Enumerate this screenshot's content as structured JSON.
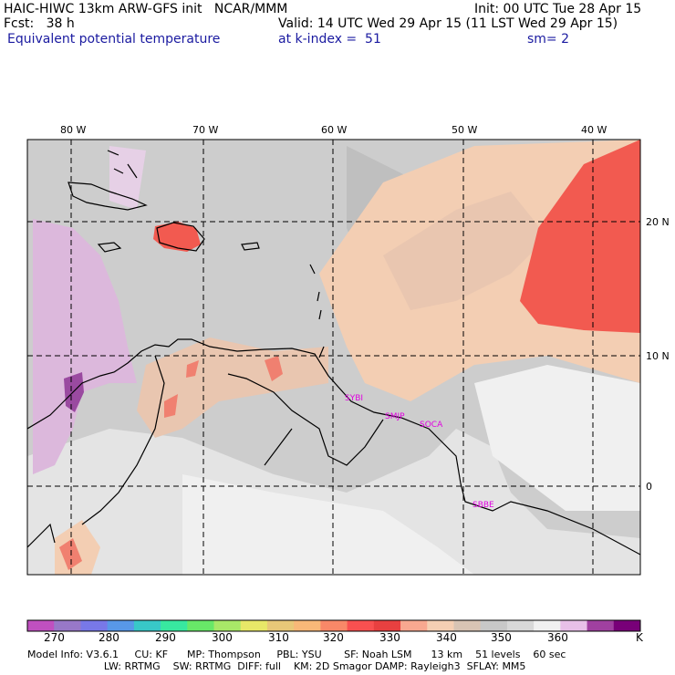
{
  "header": {
    "title": "HAIC-HIWC 13km ARW-GFS init   NCAR/MMM",
    "init": "Init: 00 UTC Tue 28 Apr 15",
    "fcst": "Fcst:   38 h",
    "valid": "Valid: 14 UTC Wed 29 Apr 15 (11 LST Wed 29 Apr 15)",
    "field": "Equivalent potential temperature",
    "level": "at k-index =  51",
    "smooth": "sm= 2"
  },
  "map": {
    "lon_labels": [
      "80 W",
      "70 W",
      "60 W",
      "50 W",
      "40 W"
    ],
    "lat_labels": [
      "20 N",
      "10 N",
      "0"
    ],
    "stations": [
      "SYBI",
      "SMJP",
      "SOCA",
      "SBBE"
    ]
  },
  "colorbar": {
    "colors": [
      "#c050c0",
      "#9878c8",
      "#7878e8",
      "#5898e8",
      "#38c8c8",
      "#38e8a0",
      "#68e868",
      "#a8e868",
      "#e8e868",
      "#e8c878",
      "#f8b878",
      "#f88868",
      "#f85050",
      "#e84040",
      "#f8a890",
      "#f5cfb3",
      "#d8c4b4",
      "#c8c8c8",
      "#d8d8d8",
      "#f0f0f0",
      "#e8c0e8",
      "#a040a0",
      "#780078"
    ],
    "ticks": [
      "270",
      "280",
      "290",
      "300",
      "310",
      "320",
      "330",
      "340",
      "350",
      "360"
    ],
    "unit": "K"
  },
  "footer": {
    "line1": "Model Info: V3.6.1     CU: KF      MP: Thompson     PBL: YSU       SF: Noah LSM      13 km    51 levels    60 sec",
    "line2": "                        LW: RRTMG    SW: RRTMG  DIFF: full    KM: 2D Smagor DAMP: Rayleigh3  SFLAY: MM5"
  }
}
